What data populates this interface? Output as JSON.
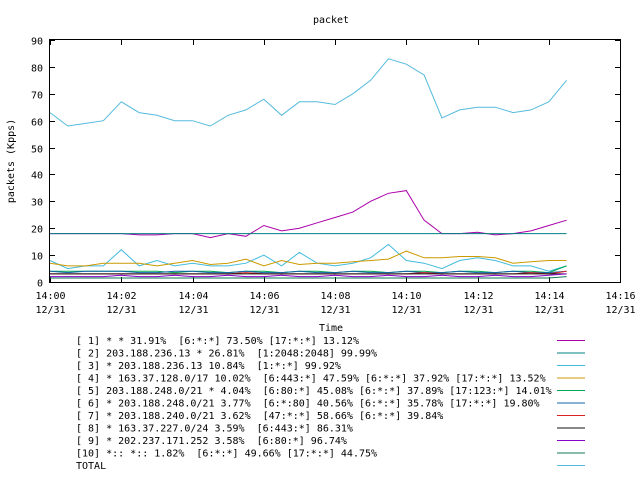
{
  "chart_data": {
    "type": "line",
    "title": "packet",
    "xlabel": "Time",
    "ylabel": "packets (Kpps)",
    "ylim": [
      0,
      90
    ],
    "yticks": [
      0,
      10,
      20,
      30,
      40,
      50,
      60,
      70,
      80,
      90
    ],
    "xlim": [
      0,
      16
    ],
    "xticks": [
      {
        "t": 0,
        "time": "14:00",
        "date": "12/31"
      },
      {
        "t": 2,
        "time": "14:02",
        "date": "12/31"
      },
      {
        "t": 4,
        "time": "14:04",
        "date": "12/31"
      },
      {
        "t": 6,
        "time": "14:06",
        "date": "12/31"
      },
      {
        "t": 8,
        "time": "14:08",
        "date": "12/31"
      },
      {
        "t": 10,
        "time": "14:10",
        "date": "12/31"
      },
      {
        "t": 12,
        "time": "14:12",
        "date": "12/31"
      },
      {
        "t": 14,
        "time": "14:14",
        "date": "12/31"
      },
      {
        "t": 16,
        "time": "14:16",
        "date": "12/31"
      }
    ],
    "x": [
      0,
      0.5,
      1,
      1.5,
      2,
      2.5,
      3,
      3.5,
      4,
      4.5,
      5,
      5.5,
      6,
      6.5,
      7,
      7.5,
      8,
      8.5,
      9,
      9.5,
      10,
      10.5,
      11,
      11.5,
      12,
      12.5,
      13,
      13.5,
      14,
      14.5
    ],
    "series": [
      {
        "label": "[ 1] * * 31.91%  [6:*:*] 73.50% [17:*:*] 13.12%",
        "color": "#aa00aa",
        "values": [
          18,
          18,
          18,
          18,
          18,
          17.5,
          17.5,
          18,
          18,
          16.5,
          18,
          17,
          21,
          19,
          20,
          22,
          24,
          26,
          30,
          33,
          34,
          23,
          18,
          18,
          18.5,
          17.5,
          18,
          19,
          21,
          23
        ]
      },
      {
        "label": "[ 2] 203.188.236.13 * 26.81%  [1:2048:2048] 99.99%",
        "color": "#008080",
        "values": [
          18,
          18,
          18,
          18,
          18,
          18,
          18,
          18,
          18,
          18,
          18,
          18,
          18,
          18,
          18,
          18,
          18,
          18,
          18,
          18,
          18,
          18,
          18,
          18,
          18,
          18,
          18,
          18,
          18,
          18
        ]
      },
      {
        "label": "[ 3] * 203.188.236.13 10.84%  [1:*:*] 99.92%",
        "color": "#44bbdd",
        "values": [
          8,
          5,
          6,
          6,
          12,
          6,
          8,
          6,
          7,
          6,
          6,
          7,
          10,
          6,
          11,
          7,
          6,
          7,
          9,
          14,
          8,
          7,
          5,
          8,
          9,
          8,
          6,
          6,
          4,
          6
        ]
      },
      {
        "label": "[ 4] * 163.37.128.0/17 10.02%  [6:443:*] 47.59% [6:*:*] 37.92% [17:*:*] 13.52%",
        "color": "#cc9900",
        "values": [
          7,
          6,
          6,
          7,
          7,
          7,
          6,
          7,
          8,
          6.5,
          7,
          8.5,
          6,
          8,
          6.5,
          7,
          7,
          7.5,
          8,
          8.5,
          11.5,
          9,
          9,
          9.5,
          9.5,
          9,
          7,
          7.5,
          8,
          8
        ]
      },
      {
        "label": "[ 5] 203.188.248.0/21 * 4.04%  [6:80:*] 45.08% [6:*:*] 37.89% [17:123:*] 14.01%",
        "color": "#00aa55",
        "values": [
          4,
          4,
          4,
          4,
          4,
          4,
          4,
          3.5,
          4,
          4,
          3.5,
          4,
          4,
          3.5,
          4,
          4,
          3.5,
          4,
          4,
          3.5,
          4,
          4,
          3.5,
          4,
          4,
          3.5,
          4,
          4,
          3.5,
          6
        ]
      },
      {
        "label": "[ 6] * 203.188.248.0/21 3.77%  [6:*:80] 40.56% [6:*:*] 35.78% [17:*:*] 19.80%",
        "color": "#1166aa",
        "values": [
          4,
          3.5,
          4,
          4,
          4,
          3.5,
          3.5,
          4,
          4,
          3.5,
          3.5,
          4,
          3.5,
          3.5,
          4,
          3.5,
          3.5,
          4,
          3.5,
          3.5,
          4,
          3.5,
          3.5,
          4,
          3.5,
          3.5,
          4,
          3.5,
          3.5,
          4
        ]
      },
      {
        "label": "[ 7] * 203.188.240.0/21 3.62%  [47:*:*] 58.66% [6:*:*] 39.84%",
        "color": "#dd2222",
        "values": [
          3,
          3,
          3,
          3,
          3,
          3,
          3,
          3,
          3,
          3,
          3,
          3.5,
          3,
          3,
          3,
          3,
          3,
          3,
          3,
          3,
          3,
          3.5,
          3,
          3,
          3,
          3,
          3,
          3.5,
          3,
          4
        ]
      },
      {
        "label": "[ 8] * 163.37.227.0/24 3.59%  [6:443:*] 86.31%",
        "color": "#111111",
        "values": [
          3,
          3,
          3,
          3,
          3,
          3,
          3,
          3,
          3,
          3,
          3,
          3,
          3,
          3,
          3,
          3,
          3,
          3,
          3,
          3,
          3,
          3,
          3,
          3,
          3,
          3,
          3,
          3,
          3,
          3
        ]
      },
      {
        "label": "[ 9] * 202.237.171.252 3.58%  [6:80:*] 96.74%",
        "color": "#8800cc",
        "values": [
          2,
          2,
          2,
          2,
          2.5,
          2,
          2,
          2.5,
          2,
          2,
          2.5,
          2,
          2,
          2.5,
          2,
          2,
          2.5,
          2,
          2,
          2.5,
          2,
          2,
          2.5,
          2,
          2,
          2.5,
          2,
          2,
          2.5,
          3
        ]
      },
      {
        "label": "[10] *:: *:: 1.82%  [6:*:*] 49.66% [17:*:*] 44.75%",
        "color": "#117755",
        "values": [
          1.5,
          1.5,
          1.5,
          1.5,
          1.5,
          1.5,
          1.5,
          1.5,
          1.5,
          1.5,
          1.5,
          1.5,
          1.5,
          1.5,
          1.5,
          1.5,
          1.5,
          1.5,
          1.5,
          1.5,
          1.5,
          1.5,
          1.5,
          1.5,
          1.5,
          1.5,
          1.5,
          1.5,
          1.5,
          2
        ]
      },
      {
        "label": "TOTAL",
        "color": "#55bbdd",
        "values": [
          63,
          58,
          59,
          60,
          67,
          63,
          62,
          60,
          60,
          58,
          62,
          64,
          68,
          62,
          67,
          67,
          66,
          70,
          75,
          83,
          81,
          77,
          61,
          64,
          65,
          65,
          63,
          64,
          67,
          75
        ]
      }
    ],
    "grid": false,
    "legend": "bottom"
  }
}
